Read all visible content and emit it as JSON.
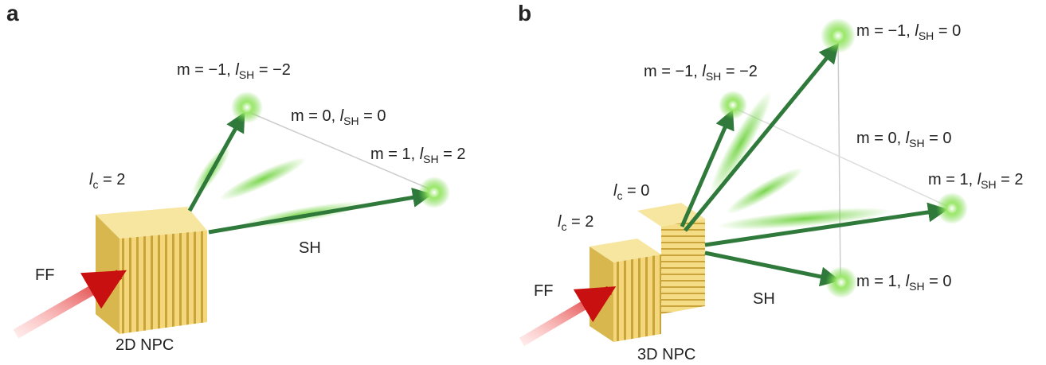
{
  "panels": [
    {
      "letter": "a",
      "crystal": "2D NPC",
      "input": "FF",
      "output": "SH",
      "charges": [
        {
          "symbol": "l",
          "sub": "c",
          "post": " = 2"
        }
      ],
      "modes": [
        {
          "pre": "m = −1, ",
          "symbol": "l",
          "sub": "SH",
          "post": " = −2"
        },
        {
          "pre": "m = 0, ",
          "symbol": "l",
          "sub": "SH",
          "post": " = 0"
        },
        {
          "pre": "m = 1, ",
          "symbol": "l",
          "sub": "SH",
          "post": " = 2"
        }
      ]
    },
    {
      "letter": "b",
      "crystal": "3D NPC",
      "input": "FF",
      "output": "SH",
      "charges": [
        {
          "symbol": "l",
          "sub": "c",
          "post": " = 0"
        },
        {
          "symbol": "l",
          "sub": "c",
          "post": " = 2"
        }
      ],
      "modes": [
        {
          "pre": "m = −1, ",
          "symbol": "l",
          "sub": "SH",
          "post": " = 0"
        },
        {
          "pre": "m = −1, ",
          "symbol": "l",
          "sub": "SH",
          "post": " = −2"
        },
        {
          "pre": "m = 0, ",
          "symbol": "l",
          "sub": "SH",
          "post": " = 0"
        },
        {
          "pre": "m = 1, ",
          "symbol": "l",
          "sub": "SH",
          "post": " = 2"
        },
        {
          "pre": "m = 1, ",
          "symbol": "l",
          "sub": "SH",
          "post": " = 0"
        }
      ]
    }
  ]
}
